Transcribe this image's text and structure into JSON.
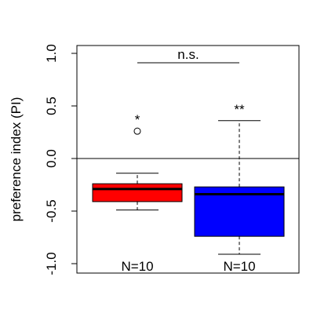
{
  "chart_data": {
    "type": "boxplot",
    "ylabel": "preference index (PI)",
    "ylim": [
      -1.05,
      1.05
    ],
    "y_ticks": [
      -1.0,
      -0.5,
      0.0,
      0.5,
      1.0
    ],
    "y_tick_labels": [
      "-1.0",
      "-0.5",
      "0.0",
      "0.5",
      "1.0"
    ],
    "reference_line_y": 0.0,
    "groups": [
      {
        "color": "#ff0000",
        "whisker_low": -0.49,
        "q1": -0.41,
        "median": -0.29,
        "q3": -0.24,
        "whisker_high": -0.14,
        "outliers": [
          0.26
        ],
        "n_label": "N=10",
        "sig_label": "*"
      },
      {
        "color": "#0000ff",
        "whisker_low": -0.91,
        "q1": -0.74,
        "median": -0.34,
        "q3": -0.27,
        "whisker_high": 0.36,
        "outliers": [],
        "n_label": "N=10",
        "sig_label": "**"
      }
    ],
    "comparison": {
      "label": "n.s.",
      "y": 0.91
    }
  }
}
